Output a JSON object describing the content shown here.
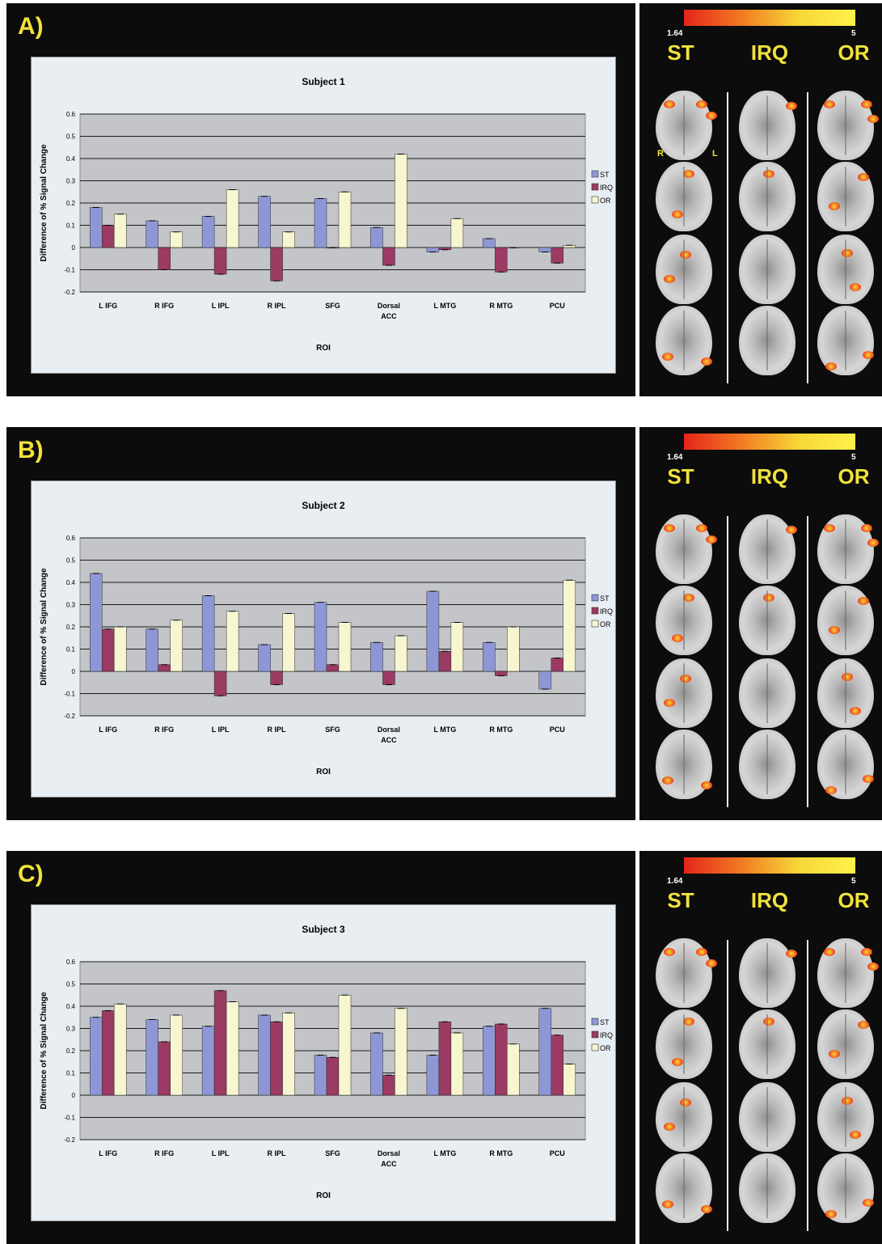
{
  "panels": [
    {
      "letter": "A)",
      "chart_title": "Subject 1",
      "scale": {
        "min": "1.64",
        "max": "5"
      },
      "orientation": {
        "right": "R",
        "left": "L"
      }
    },
    {
      "letter": "B)",
      "chart_title": "Subject 2",
      "scale": {
        "min": "1.64",
        "max": "5"
      }
    },
    {
      "letter": "C)",
      "chart_title": "Subject 3",
      "scale": {
        "min": "1.64",
        "max": "5"
      }
    }
  ],
  "brain_columns": [
    "ST",
    "IRQ",
    "OR"
  ],
  "colors": {
    "ST": "#8e97d6",
    "IRQ": "#9b3a63",
    "OR": "#f7f6d0",
    "plot_bg": "#c3c5c8",
    "accent": "#f1e23a"
  },
  "chart_data": [
    {
      "type": "bar",
      "title": "Subject 1",
      "xlabel": "ROI",
      "ylabel": "Difference of % Signal Change",
      "categories": [
        [
          "L IFG"
        ],
        [
          "R IFG"
        ],
        [
          "L IPL"
        ],
        [
          "R IPL"
        ],
        [
          "SFG"
        ],
        [
          "Dorsal",
          "ACC"
        ],
        [
          "L MTG"
        ],
        [
          "R MTG"
        ],
        [
          "PCU"
        ]
      ],
      "ylim": [
        -0.2,
        0.6
      ],
      "yticks": [
        "-0.2",
        "-0.1",
        "0",
        "0.1",
        "0.2",
        "0.3",
        "0.4",
        "0.5",
        "0.6"
      ],
      "legend_position": "right",
      "grid": true,
      "series": [
        {
          "name": "ST",
          "values": [
            0.18,
            0.12,
            0.14,
            0.23,
            0.22,
            0.09,
            -0.02,
            0.04,
            -0.02
          ]
        },
        {
          "name": "IRQ",
          "values": [
            0.1,
            -0.1,
            -0.12,
            -0.15,
            0.0,
            -0.08,
            -0.01,
            -0.11,
            -0.07
          ]
        },
        {
          "name": "OR",
          "values": [
            0.15,
            0.07,
            0.26,
            0.07,
            0.25,
            0.42,
            0.13,
            0.0,
            0.01
          ]
        }
      ]
    },
    {
      "type": "bar",
      "title": "Subject 2",
      "xlabel": "ROI",
      "ylabel": "Difference of % Signal Change",
      "categories": [
        [
          "L IFG"
        ],
        [
          "R IFG"
        ],
        [
          "L IPL"
        ],
        [
          "R IPL"
        ],
        [
          "SFG"
        ],
        [
          "Dorsal",
          "ACC"
        ],
        [
          "L MTG"
        ],
        [
          "R MTG"
        ],
        [
          "PCU"
        ]
      ],
      "ylim": [
        -0.2,
        0.6
      ],
      "yticks": [
        "-0.2",
        "-0.1",
        "0",
        "0.1",
        "0.2",
        "0.3",
        "0.4",
        "0.5",
        "0.6"
      ],
      "legend_position": "right",
      "grid": true,
      "series": [
        {
          "name": "ST",
          "values": [
            0.44,
            0.19,
            0.34,
            0.12,
            0.31,
            0.13,
            0.36,
            0.13,
            -0.08
          ]
        },
        {
          "name": "IRQ",
          "values": [
            0.19,
            0.03,
            -0.11,
            -0.06,
            0.03,
            -0.06,
            0.09,
            -0.02,
            0.06
          ]
        },
        {
          "name": "OR",
          "values": [
            0.2,
            0.23,
            0.27,
            0.26,
            0.22,
            0.16,
            0.22,
            0.2,
            0.41
          ]
        }
      ]
    },
    {
      "type": "bar",
      "title": "Subject 3",
      "xlabel": "ROI",
      "ylabel": "Difference of % Signal Change",
      "categories": [
        [
          "L IFG"
        ],
        [
          "R IFG"
        ],
        [
          "L IPL"
        ],
        [
          "R IPL"
        ],
        [
          "SFG"
        ],
        [
          "Dorsal",
          "ACC"
        ],
        [
          "L MTG"
        ],
        [
          "R MTG"
        ],
        [
          "PCU"
        ]
      ],
      "ylim": [
        -0.2,
        0.6
      ],
      "yticks": [
        "-0.2",
        "-0.1",
        "0",
        "0.1",
        "0.2",
        "0.3",
        "0.4",
        "0.5",
        "0.6"
      ],
      "legend_position": "right",
      "grid": true,
      "series": [
        {
          "name": "ST",
          "values": [
            0.35,
            0.34,
            0.31,
            0.36,
            0.18,
            0.28,
            0.18,
            0.31,
            0.39
          ]
        },
        {
          "name": "IRQ",
          "values": [
            0.38,
            0.24,
            0.47,
            0.33,
            0.17,
            0.09,
            0.33,
            0.32,
            0.27
          ]
        },
        {
          "name": "OR",
          "values": [
            0.41,
            0.36,
            0.42,
            0.37,
            0.45,
            0.39,
            0.28,
            0.23,
            0.14
          ]
        }
      ]
    }
  ]
}
